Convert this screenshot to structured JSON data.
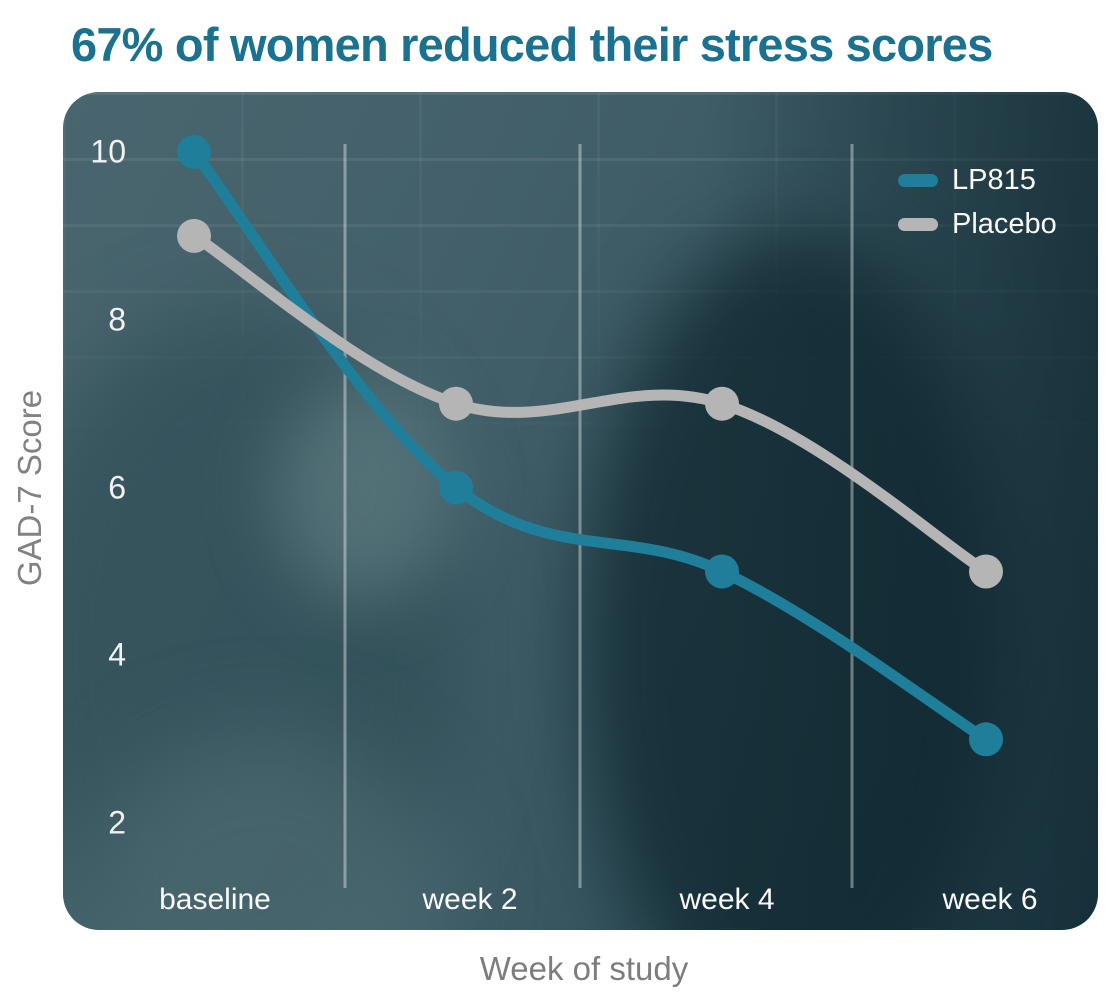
{
  "title": {
    "text": "67% of women reduced their stress scores",
    "color": "#1b7290"
  },
  "colors": {
    "title": "#1b7290",
    "axis_label": "#7d7d7d",
    "tick_label": "#f5f5f5",
    "gridline": "rgba(255,255,255,0.38)",
    "card_overlay": "#3d5b65",
    "lp815": "#1f7e99",
    "placebo": "#b5b5b5"
  },
  "chart_data": {
    "type": "line",
    "categories": [
      "baseline",
      "week 2",
      "week 4",
      "week 6"
    ],
    "series": [
      {
        "name": "LP815",
        "color": "#1f7e99",
        "values": [
          10,
          6,
          5,
          3
        ]
      },
      {
        "name": "Placebo",
        "color": "#b5b5b5",
        "values": [
          9,
          7,
          7,
          5
        ]
      }
    ],
    "title": "67% of women reduced their stress scores",
    "xlabel": "Week of study",
    "ylabel": "GAD-7 Score",
    "y_ticks": [
      10,
      8,
      6,
      4,
      2
    ],
    "ylim": [
      1,
      10.6
    ],
    "grid": "vertical separators between categories only",
    "legend_position": "top-right",
    "curve": "smooth",
    "point_style": "filled circle",
    "background": "photo of two young women laughing with dark teal overlay"
  }
}
